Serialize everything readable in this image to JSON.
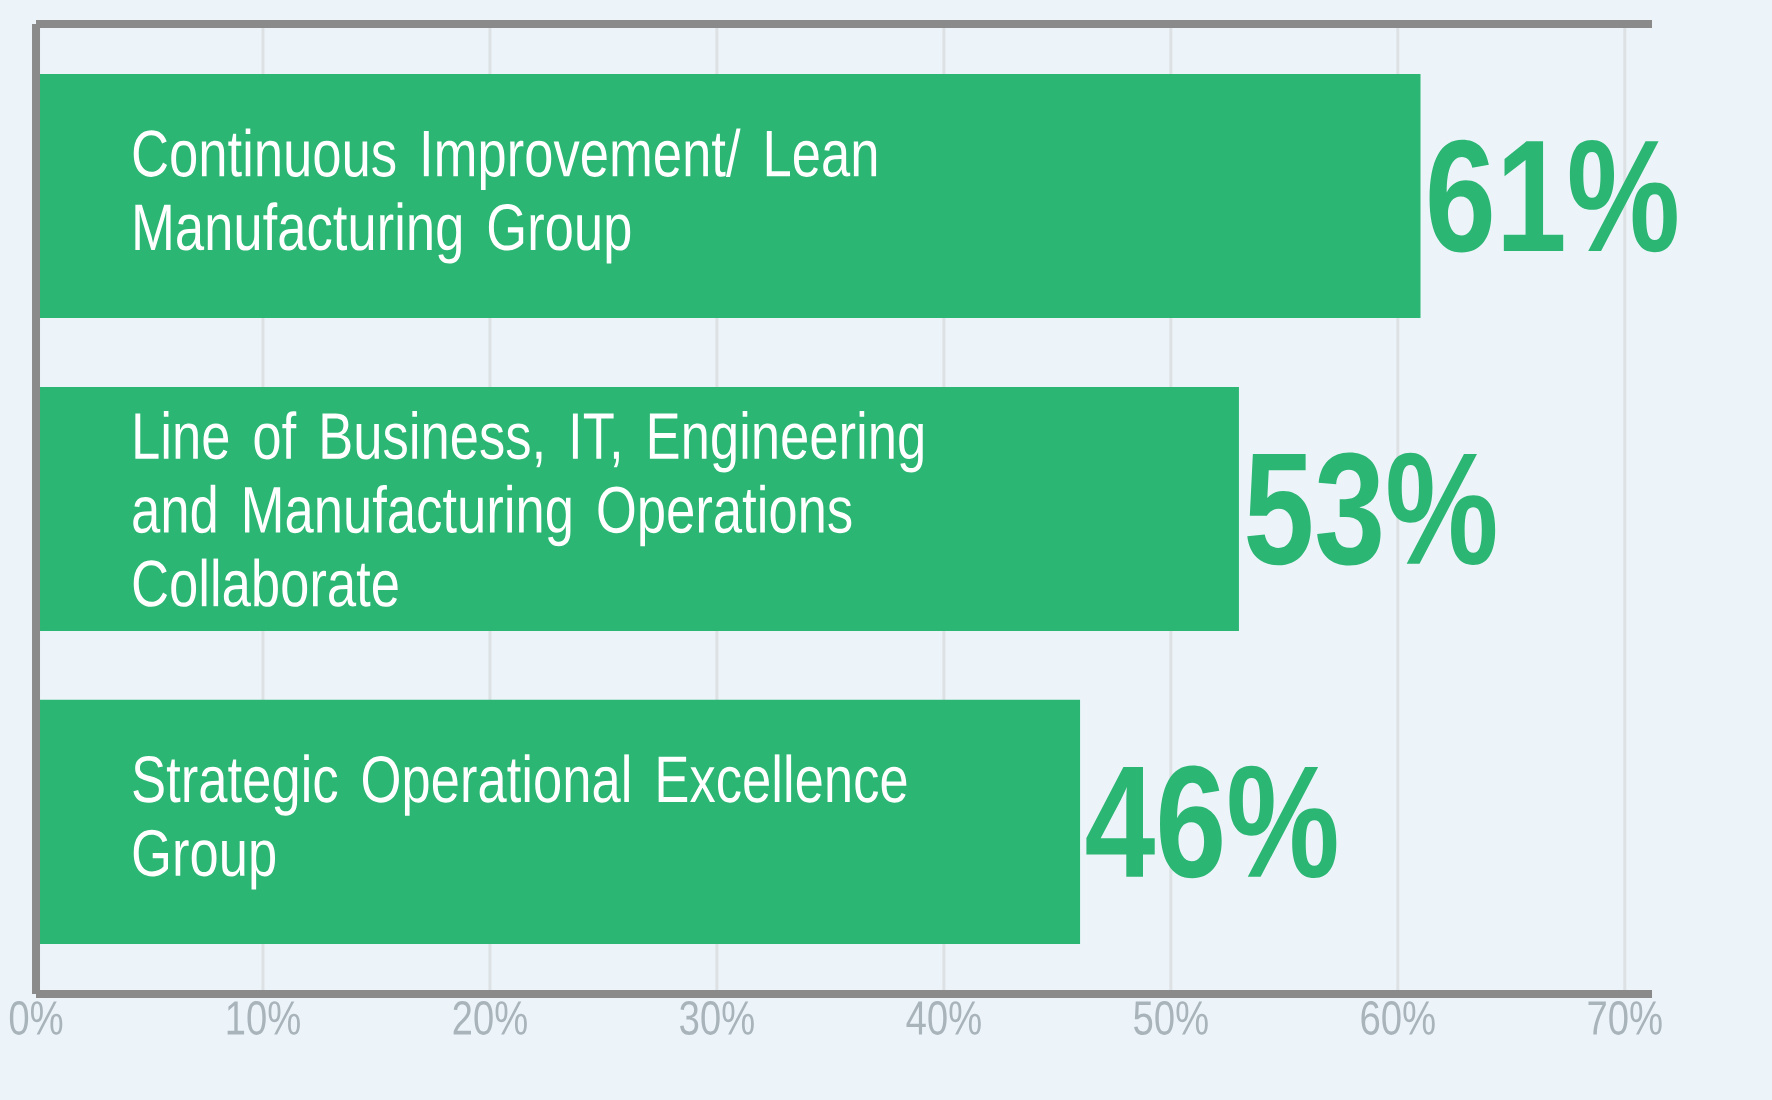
{
  "chart_data": {
    "type": "bar",
    "orientation": "horizontal",
    "categories": [
      "Continuous Improvement/ Lean Manufacturing Group",
      "Line of Business, IT, Engineering and Manufacturing Operations Collaborate",
      "Strategic Operational Excellence Group"
    ],
    "values": [
      61,
      53,
      46
    ],
    "value_labels": [
      "61%",
      "53%",
      "46%"
    ],
    "color": "#2bb673",
    "xlim": [
      0,
      71.2
    ],
    "xticks": [
      {
        "value": 0,
        "label": "0%"
      },
      {
        "value": 10,
        "label": "10%"
      },
      {
        "value": 20,
        "label": "20%"
      },
      {
        "value": 30,
        "label": "30%"
      },
      {
        "value": 40,
        "label": "40%"
      },
      {
        "value": 50,
        "label": "50%"
      },
      {
        "value": 60,
        "label": "60%"
      },
      {
        "value": 70,
        "label": "70%"
      }
    ],
    "grid": "x"
  }
}
